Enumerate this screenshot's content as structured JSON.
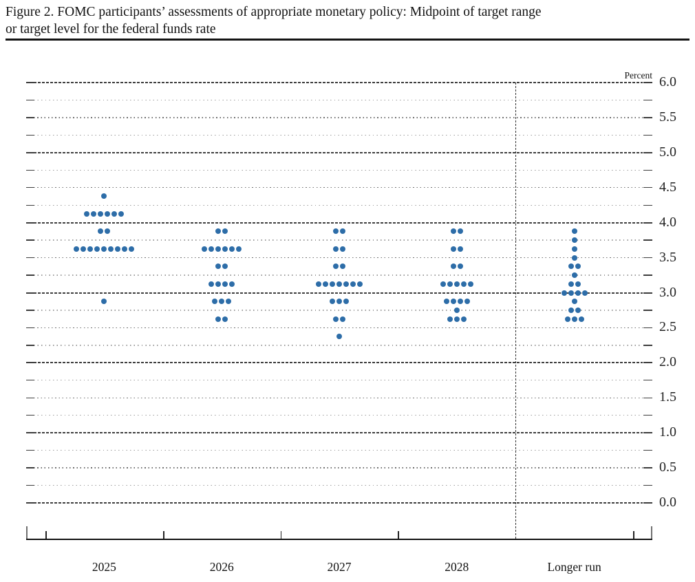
{
  "title": {
    "line1": "Figure 2. FOMC participants’ assessments of appropriate monetary policy: Midpoint of target range",
    "line2": "or target level for the federal funds rate"
  },
  "axis": {
    "unit_label": "Percent",
    "y_tick_labels": [
      "6.0",
      "5.5",
      "5.0",
      "4.5",
      "4.0",
      "3.5",
      "3.0",
      "2.5",
      "2.0",
      "1.5",
      "1.0",
      "0.5",
      "0.0"
    ],
    "x_categories": [
      "2025",
      "2026",
      "2027",
      "2028",
      "Longer run"
    ]
  },
  "chart_data": {
    "type": "scatter",
    "subtype": "fomc-dot-plot",
    "title": "FOMC participants’ assessments of appropriate monetary policy: Midpoint of target range or target level for the federal funds rate",
    "ylabel": "Percent",
    "ylim": [
      0.0,
      6.0
    ],
    "y_label_step": 0.5,
    "gridline_step": 0.25,
    "grid_on": true,
    "legend": "none",
    "categories": [
      "2025",
      "2026",
      "2027",
      "2028",
      "Longer run"
    ],
    "separator_before_category": "Longer run",
    "dot_color": "#2d6da8",
    "participants_per_year": 19,
    "series": [
      {
        "name": "2025",
        "dots": [
          {
            "rate": 4.375,
            "count": 1
          },
          {
            "rate": 4.125,
            "count": 6
          },
          {
            "rate": 3.875,
            "count": 2
          },
          {
            "rate": 3.625,
            "count": 9
          },
          {
            "rate": 2.875,
            "count": 1
          }
        ]
      },
      {
        "name": "2026",
        "dots": [
          {
            "rate": 3.875,
            "count": 2
          },
          {
            "rate": 3.625,
            "count": 6
          },
          {
            "rate": 3.375,
            "count": 2
          },
          {
            "rate": 3.125,
            "count": 4
          },
          {
            "rate": 2.875,
            "count": 3
          },
          {
            "rate": 2.625,
            "count": 2
          }
        ]
      },
      {
        "name": "2027",
        "dots": [
          {
            "rate": 3.875,
            "count": 2
          },
          {
            "rate": 3.625,
            "count": 2
          },
          {
            "rate": 3.375,
            "count": 2
          },
          {
            "rate": 3.125,
            "count": 7
          },
          {
            "rate": 2.875,
            "count": 3
          },
          {
            "rate": 2.625,
            "count": 2
          },
          {
            "rate": 2.375,
            "count": 1
          }
        ]
      },
      {
        "name": "2028",
        "dots": [
          {
            "rate": 3.875,
            "count": 2
          },
          {
            "rate": 3.625,
            "count": 2
          },
          {
            "rate": 3.375,
            "count": 2
          },
          {
            "rate": 3.125,
            "count": 5
          },
          {
            "rate": 2.875,
            "count": 4
          },
          {
            "rate": 2.75,
            "count": 1
          },
          {
            "rate": 2.625,
            "count": 3
          }
        ]
      },
      {
        "name": "Longer run",
        "dots": [
          {
            "rate": 3.875,
            "count": 1
          },
          {
            "rate": 3.75,
            "count": 1
          },
          {
            "rate": 3.625,
            "count": 1
          },
          {
            "rate": 3.5,
            "count": 1
          },
          {
            "rate": 3.375,
            "count": 2
          },
          {
            "rate": 3.25,
            "count": 1
          },
          {
            "rate": 3.125,
            "count": 2
          },
          {
            "rate": 3.0,
            "count": 4
          },
          {
            "rate": 2.875,
            "count": 1
          },
          {
            "rate": 2.75,
            "count": 2
          },
          {
            "rate": 2.625,
            "count": 3
          }
        ]
      }
    ]
  },
  "colors": {
    "dot": "#2d6da8",
    "major_gridline": "#3d3d3d",
    "minor_gridline": "#9b9b9b",
    "axis": "#101010",
    "text": "#111111"
  }
}
